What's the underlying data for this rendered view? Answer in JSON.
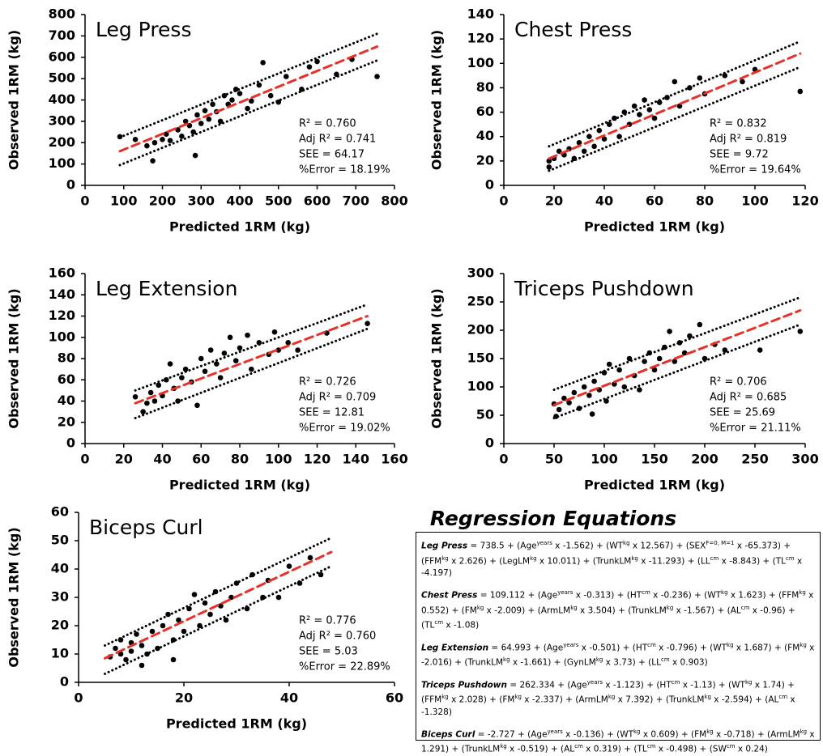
{
  "chart_data": [
    {
      "type": "scatter",
      "title": "Leg Press",
      "xlabel": "Predicted 1RM (kg)",
      "ylabel": "Observed 1RM (kg)",
      "color": "#000000",
      "annotations": [
        "R² = 0.760",
        "Adj R² = 0.741",
        "SEE = 64.17",
        "%Error = 18.19%"
      ],
      "x": [
        90,
        130,
        160,
        175,
        180,
        200,
        210,
        220,
        240,
        250,
        260,
        270,
        280,
        285,
        290,
        300,
        310,
        320,
        330,
        340,
        350,
        360,
        370,
        380,
        390,
        400,
        420,
        430,
        450,
        460,
        480,
        500,
        520,
        560,
        580,
        600,
        650,
        690,
        755
      ],
      "y": [
        228,
        215,
        185,
        115,
        200,
        215,
        240,
        210,
        260,
        230,
        300,
        280,
        250,
        140,
        330,
        290,
        350,
        310,
        380,
        345,
        300,
        420,
        380,
        400,
        450,
        430,
        360,
        395,
        470,
        575,
        420,
        390,
        510,
        450,
        555,
        580,
        520,
        590,
        510
      ],
      "fit_line": {
        "color": "#e8302a",
        "x": [
          90,
          755
        ],
        "y": [
          160,
          650
        ]
      },
      "upper_bound": {
        "color": "#000000",
        "x": [
          90,
          755
        ],
        "y": [
          225,
          710
        ]
      },
      "lower_bound": {
        "color": "#000000",
        "x": [
          90,
          755
        ],
        "y": [
          95,
          585
        ]
      },
      "xlim": [
        0,
        800
      ],
      "ylim": [
        0,
        800
      ],
      "xticks": [
        0,
        100,
        200,
        300,
        400,
        500,
        600,
        700,
        800
      ],
      "yticks": [
        0,
        100,
        200,
        300,
        400,
        500,
        600,
        700,
        800
      ]
    },
    {
      "type": "scatter",
      "title": "Chest Press",
      "xlabel": "Predicted 1RM (kg)",
      "ylabel": "Observed 1RM (kg)",
      "color": "#000000",
      "annotations": [
        "R² = 0.832",
        "Adj R² = 0.819",
        "SEE = 9.72",
        "%Error = 19.64%"
      ],
      "x": [
        18,
        18,
        20,
        22,
        24,
        26,
        28,
        30,
        32,
        34,
        36,
        38,
        40,
        42,
        44,
        46,
        48,
        50,
        52,
        54,
        56,
        58,
        60,
        62,
        65,
        68,
        70,
        74,
        78,
        80,
        88,
        95,
        100,
        118
      ],
      "y": [
        15,
        20,
        22,
        28,
        25,
        30,
        22,
        35,
        28,
        40,
        32,
        45,
        38,
        50,
        55,
        40,
        60,
        50,
        65,
        58,
        70,
        62,
        55,
        68,
        72,
        85,
        65,
        80,
        88,
        75,
        90,
        85,
        95,
        77
      ],
      "fit_line": {
        "color": "#e8302a",
        "x": [
          18,
          118
        ],
        "y": [
          22,
          108
        ]
      },
      "upper_bound": {
        "color": "#000000",
        "x": [
          18,
          118
        ],
        "y": [
          32,
          118
        ]
      },
      "lower_bound": {
        "color": "#000000",
        "x": [
          18,
          118
        ],
        "y": [
          12,
          97
        ]
      },
      "xlim": [
        0,
        120
      ],
      "ylim": [
        0,
        140
      ],
      "xticks": [
        0,
        20,
        40,
        60,
        80,
        100,
        120
      ],
      "yticks": [
        0,
        20,
        40,
        60,
        80,
        100,
        120,
        140
      ]
    },
    {
      "type": "scatter",
      "title": "Leg Extension",
      "xlabel": "Predicted 1RM (kg)",
      "ylabel": "Observed 1RM (kg)",
      "color": "#000000",
      "annotations": [
        "R² = 0.726",
        "Adj R² = 0.709",
        "SEE = 12.81",
        "%Error = 19.02%"
      ],
      "x": [
        26,
        30,
        32,
        34,
        36,
        38,
        40,
        42,
        44,
        46,
        48,
        50,
        52,
        55,
        58,
        60,
        62,
        65,
        68,
        70,
        72,
        75,
        78,
        80,
        84,
        86,
        90,
        95,
        98,
        100,
        105,
        110,
        125,
        146
      ],
      "y": [
        44,
        30,
        38,
        48,
        40,
        55,
        45,
        60,
        75,
        52,
        40,
        62,
        70,
        58,
        36,
        80,
        68,
        88,
        75,
        62,
        85,
        100,
        78,
        90,
        102,
        70,
        95,
        84,
        105,
        88,
        95,
        88,
        104,
        113
      ],
      "fit_line": {
        "color": "#e8302a",
        "x": [
          26,
          146
        ],
        "y": [
          38,
          120
        ]
      },
      "upper_bound": {
        "color": "#000000",
        "x": [
          26,
          146
        ],
        "y": [
          50,
          131
        ]
      },
      "lower_bound": {
        "color": "#000000",
        "x": [
          26,
          146
        ],
        "y": [
          24,
          108
        ]
      },
      "xlim": [
        0,
        160
      ],
      "ylim": [
        0,
        160
      ],
      "xticks": [
        0,
        20,
        40,
        60,
        80,
        100,
        120,
        140,
        160
      ],
      "yticks": [
        0,
        20,
        40,
        60,
        80,
        100,
        120,
        140,
        160
      ]
    },
    {
      "type": "scatter",
      "title": "Triceps Pushdown",
      "xlabel": "Predicted 1RM (kg)",
      "ylabel": "Observed 1RM (kg)",
      "color": "#000000",
      "annotations": [
        "R² = 0.706",
        "Adj R² = 0.685",
        "SEE = 25.69",
        "%Error = 21.11%"
      ],
      "x": [
        50,
        52,
        55,
        60,
        65,
        70,
        75,
        80,
        85,
        88,
        90,
        95,
        100,
        102,
        105,
        110,
        115,
        120,
        125,
        130,
        135,
        140,
        145,
        150,
        155,
        160,
        165,
        170,
        175,
        180,
        185,
        195,
        200,
        210,
        220,
        255,
        295
      ],
      "y": [
        70,
        48,
        60,
        80,
        72,
        90,
        62,
        100,
        85,
        52,
        110,
        95,
        125,
        75,
        140,
        105,
        130,
        100,
        150,
        120,
        95,
        145,
        160,
        130,
        150,
        170,
        198,
        145,
        178,
        160,
        190,
        210,
        150,
        175,
        165,
        165,
        198
      ],
      "fit_line": {
        "color": "#e8302a",
        "x": [
          50,
          295
        ],
        "y": [
          68,
          235
        ]
      },
      "upper_bound": {
        "color": "#000000",
        "x": [
          50,
          295
        ],
        "y": [
          95,
          258
        ]
      },
      "lower_bound": {
        "color": "#000000",
        "x": [
          50,
          295
        ],
        "y": [
          45,
          210
        ]
      },
      "xlim": [
        0,
        300
      ],
      "ylim": [
        0,
        300
      ],
      "xticks": [
        0,
        50,
        100,
        150,
        200,
        250,
        300
      ],
      "yticks": [
        0,
        50,
        100,
        150,
        200,
        250,
        300
      ]
    },
    {
      "type": "scatter",
      "title": "Biceps Curl",
      "xlabel": "Predicted 1RM (kg)",
      "ylabel": "Observed 1RM (kg)",
      "color": "#000000",
      "annotations": [
        "R² = 0.776",
        "Adj R² = 0.760",
        "SEE = 5.03",
        "%Error = 22.89%"
      ],
      "x": [
        6,
        7,
        8,
        8,
        9,
        10,
        10,
        11,
        12,
        12,
        13,
        14,
        15,
        16,
        17,
        18,
        18,
        19,
        20,
        21,
        22,
        23,
        24,
        25,
        26,
        27,
        28,
        29,
        30,
        32,
        33,
        35,
        36,
        38,
        40,
        42,
        44,
        46
      ],
      "y": [
        9,
        12,
        10,
        15,
        8,
        14,
        11,
        17,
        6,
        13,
        10,
        18,
        12,
        20,
        24,
        8,
        15,
        22,
        18,
        26,
        31,
        20,
        28,
        24,
        32,
        27,
        22,
        30,
        35,
        26,
        38,
        30,
        36,
        30,
        41,
        35,
        44,
        38
      ],
      "fit_line": {
        "color": "#e8302a",
        "x": [
          5,
          48
        ],
        "y": [
          8.5,
          46
        ]
      },
      "upper_bound": {
        "color": "#000000",
        "x": [
          5,
          48
        ],
        "y": [
          13,
          51
        ]
      },
      "lower_bound": {
        "color": "#000000",
        "x": [
          5,
          48
        ],
        "y": [
          3,
          41
        ]
      },
      "xlim": [
        0,
        60
      ],
      "ylim": [
        0,
        60
      ],
      "xticks": [
        0,
        20,
        40,
        60
      ],
      "yticks": [
        0,
        10,
        20,
        30,
        40,
        50,
        60
      ]
    }
  ],
  "equations": {
    "title": "Regression Equations",
    "items": [
      {
        "name": "Leg Press",
        "parts": [
          " = 738.5 + (Age",
          {
            "sup": "years"
          },
          " x -1.562) + (WT",
          {
            "sup": "kg"
          },
          " x 12.567) + (SEX",
          {
            "sup": "F=0, M=1"
          },
          " x -65.373) + (FFM",
          {
            "sup": "kg"
          },
          " x 2.626) + (LegLM",
          {
            "sup": "kg"
          },
          " x 10.011) + (TrunkLM",
          {
            "sup": "kg"
          },
          " x -11.293) + (LL",
          {
            "sup": "cm"
          },
          " x -8.843) + (TL",
          {
            "sup": "cm"
          },
          " x -4.197)"
        ]
      },
      {
        "name": "Chest Press",
        "parts": [
          " = 109.112 + (Age",
          {
            "sup": "years"
          },
          " x -0.313) + (HT",
          {
            "sup": "cm"
          },
          " x -0.236) + (WT",
          {
            "sup": "kg"
          },
          " x 1.623) + (FFM",
          {
            "sup": "kg"
          },
          " x 0.552) + (FM",
          {
            "sup": "kg"
          },
          " x -2.009) + (ArmLM",
          {
            "sup": "kg"
          },
          " x 3.504) + (TrunkLM",
          {
            "sup": "kg"
          },
          " x -1.567) + (AL",
          {
            "sup": "cm"
          },
          " x -0.96) + (TL",
          {
            "sup": "cm"
          },
          " x -1.08)"
        ]
      },
      {
        "name": "Leg Extension",
        "parts": [
          " = 64.993 + (Age",
          {
            "sup": "years"
          },
          " x -0.501) + (HT",
          {
            "sup": "cm"
          },
          " x -0.796) + (WT",
          {
            "sup": "kg"
          },
          " x 1.687) + (FM",
          {
            "sup": "kg"
          },
          " x -2.016) + (TrunkLM",
          {
            "sup": "kg"
          },
          " x -1.661) + (GynLM",
          {
            "sup": "kg"
          },
          " x 3.73) + (LL",
          {
            "sup": "cm"
          },
          " x 0.903)"
        ]
      },
      {
        "name": "Triceps Pushdown",
        "parts": [
          " = 262.334 + (Age",
          {
            "sup": "years"
          },
          " x -1.123) + (HT",
          {
            "sup": "cm"
          },
          " x -1.13) + (WT",
          {
            "sup": "kg"
          },
          " x 1.74) + (FFM",
          {
            "sup": "kg"
          },
          " x 2.028) + (FM",
          {
            "sup": "kg"
          },
          " x -2.337) + (ArmLM",
          {
            "sup": "kg"
          },
          " x 7.392) + (TrunkLM",
          {
            "sup": "kg"
          },
          " x -2.594) + (AL",
          {
            "sup": "cm"
          },
          " x -1.328)"
        ]
      },
      {
        "name": "Biceps Curl",
        "parts": [
          " = -2.727 + (Age",
          {
            "sup": "years"
          },
          " x -0.136) + (WT",
          {
            "sup": "kg"
          },
          " x 0.609) + (FM",
          {
            "sup": "kg"
          },
          " x -0.718) + (ArmLM",
          {
            "sup": "kg"
          },
          " x 1.291) + (TrunkLM",
          {
            "sup": "kg"
          },
          " x -0.519) + (AL",
          {
            "sup": "cm"
          },
          " x 0.319) + (TL",
          {
            "sup": "cm"
          },
          " x -0.498) + (SW",
          {
            "sup": "cm"
          },
          " x 0.24)"
        ]
      }
    ]
  }
}
